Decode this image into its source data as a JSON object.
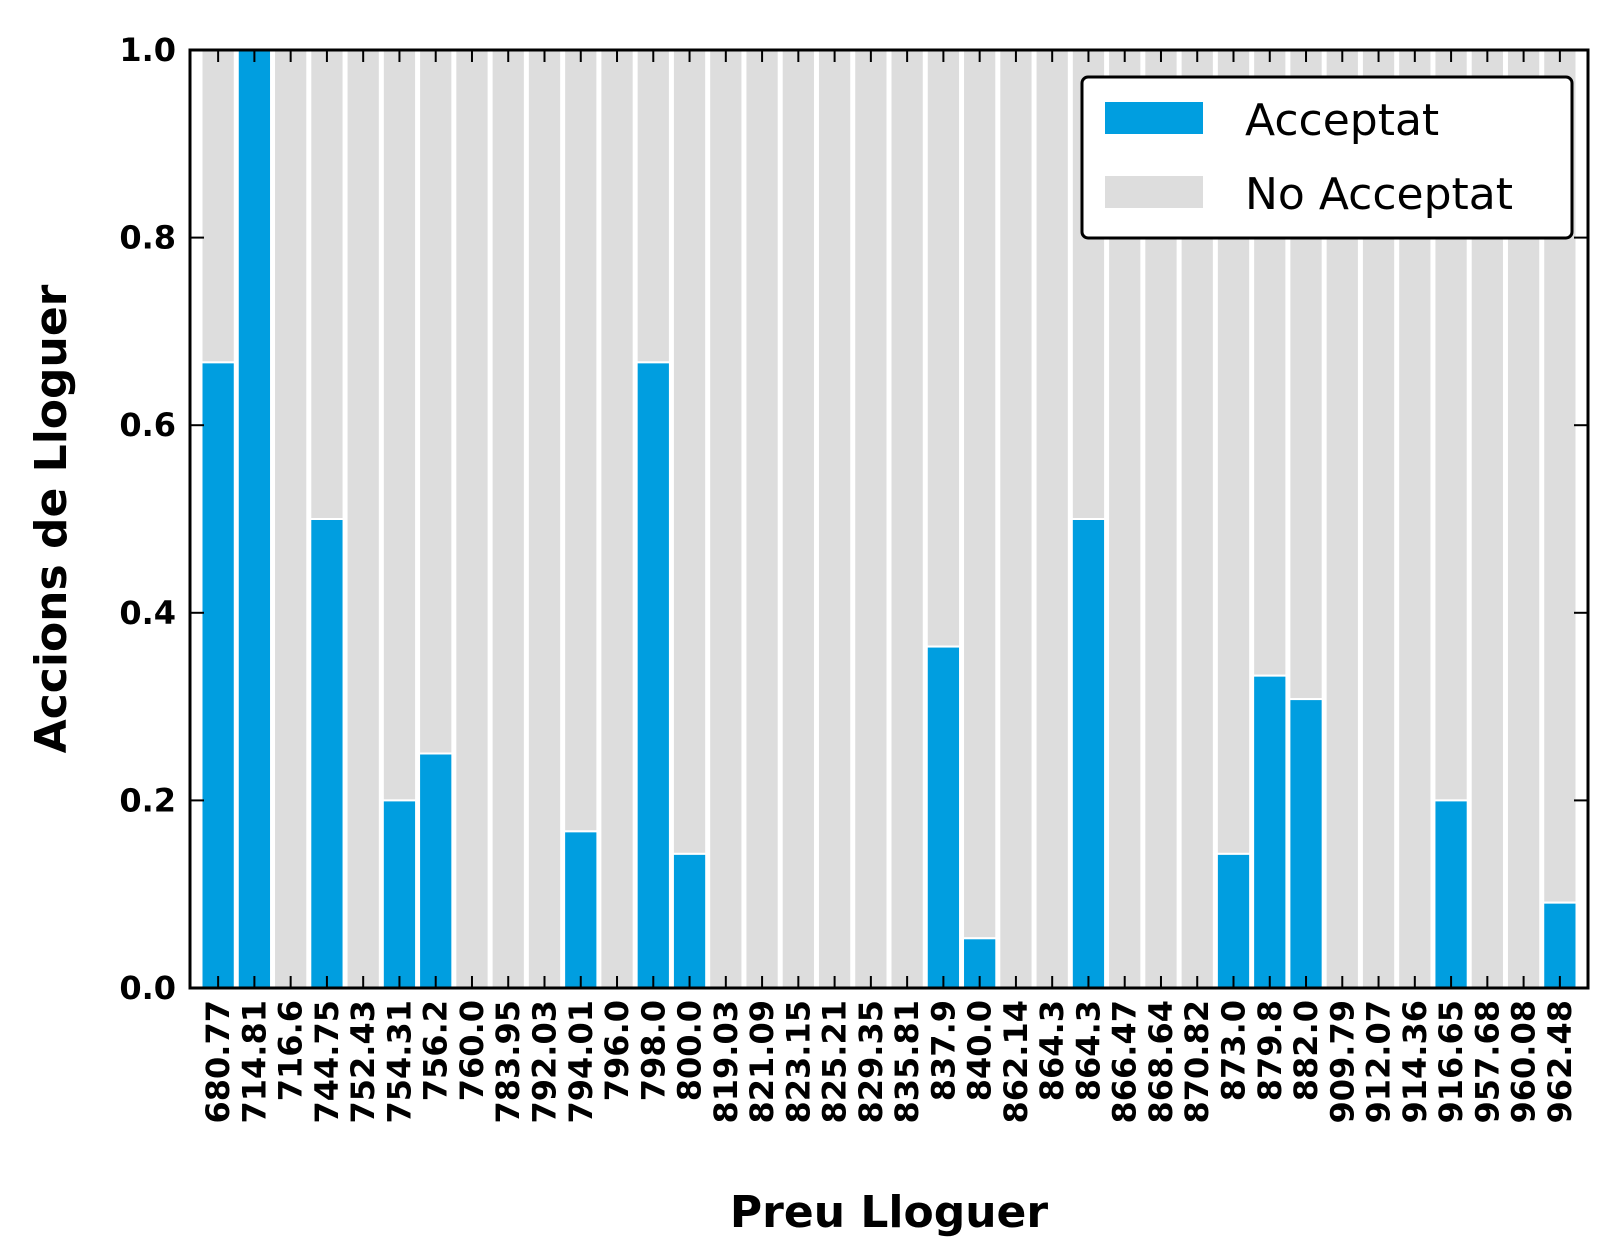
{
  "chart_data": {
    "type": "bar",
    "stacked": true,
    "title": "",
    "xlabel": "Preu Lloguer",
    "ylabel": "Accions de Lloguer",
    "ylim": [
      0,
      1.0
    ],
    "yticks": [
      "0.0",
      "0.2",
      "0.4",
      "0.6",
      "0.8",
      "1.0"
    ],
    "legend_position": "top-right",
    "categories": [
      "680.77",
      "714.81",
      "716.6",
      "744.75",
      "752.43",
      "754.31",
      "756.2",
      "760.0",
      "783.95",
      "792.03",
      "794.01",
      "796.0",
      "798.0",
      "800.0",
      "819.03",
      "821.09",
      "823.15",
      "825.21",
      "829.35",
      "835.81",
      "837.9",
      "840.0",
      "862.14",
      "864.3",
      "864.3",
      "866.47",
      "868.64",
      "870.82",
      "873.0",
      "879.8",
      "882.0",
      "909.79",
      "912.07",
      "914.36",
      "916.65",
      "957.68",
      "960.08",
      "962.48"
    ],
    "series": [
      {
        "name": "Acceptat",
        "color": "#009ee0",
        "values": [
          0.667,
          1.0,
          0,
          0.5,
          0,
          0.2,
          0.25,
          0,
          0,
          0,
          0.167,
          0,
          0.667,
          0.143,
          0,
          0,
          0,
          0,
          0,
          0,
          0.364,
          0.053,
          0,
          0,
          0.5,
          0,
          0,
          0,
          0.143,
          0.333,
          0.308,
          0,
          0,
          0,
          0.2,
          0,
          0,
          0.091
        ]
      },
      {
        "name": "No Acceptat",
        "color": "#dddddd",
        "values": [
          0.333,
          0,
          1,
          0.5,
          1,
          0.8,
          0.75,
          1,
          1,
          1,
          0.833,
          1,
          0.333,
          0.857,
          1,
          1,
          1,
          1,
          1,
          1,
          0.636,
          0.947,
          1,
          1,
          0.5,
          1,
          1,
          1,
          0.857,
          0.667,
          0.692,
          1,
          1,
          1,
          0.8,
          1,
          1,
          0.909
        ]
      }
    ]
  }
}
